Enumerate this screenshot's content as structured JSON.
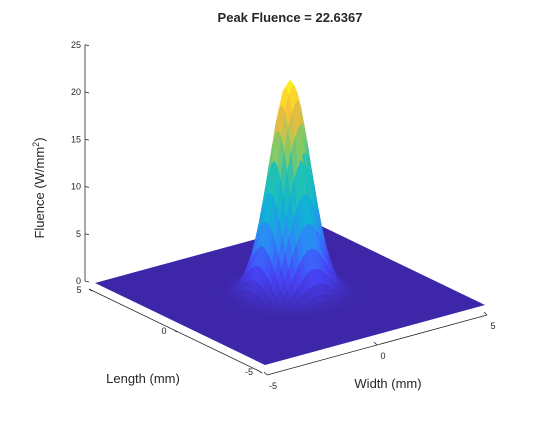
{
  "chart_data": {
    "type": "surface",
    "title": "Peak Fluence = 22.6367",
    "xlabel": "Width (mm)",
    "ylabel": "Length (mm)",
    "zlabel": "Fluence (W/mm",
    "zlabel_sup": "2",
    "zlabel_close": ")",
    "xlim": [
      -5,
      5
    ],
    "ylim": [
      -5,
      5
    ],
    "zlim": [
      0,
      25
    ],
    "x_ticks": [
      "-5",
      "0",
      "5"
    ],
    "y_ticks": [
      "-5",
      "0",
      "5"
    ],
    "z_ticks": [
      "0",
      "5",
      "10",
      "15",
      "20",
      "25"
    ],
    "peak": 22.6367,
    "sigma_mm": 0.75,
    "grid": false,
    "colormap": [
      "#3e26a8",
      "#4743f8",
      "#2e87f7",
      "#12b1d6",
      "#21c2b3",
      "#93ca5c",
      "#fbbb3d",
      "#f9fb15"
    ]
  }
}
